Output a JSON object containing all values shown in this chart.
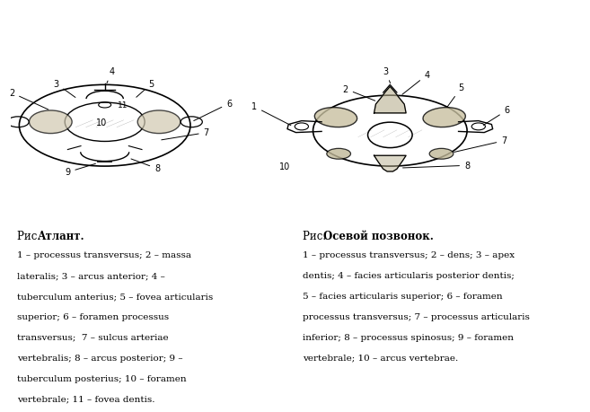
{
  "bg_color": "#ffffff",
  "fig_width": 6.48,
  "fig_height": 4.37,
  "title1_normal": "Рис. ",
  "title1_bold": "Атлант.",
  "title2_normal": "Рис. ",
  "title2_bold": "Осевой позвонок.",
  "text1_lines": [
    "1 – processus transversus; 2 – massa",
    "lateralis; 3 – arcus anterior; 4 –",
    "tuberculum anterius; 5 – fovea articularis",
    "superior; 6 – foramen processus",
    "transversus;  7 – sulcus arteriae",
    "vertebralis; 8 – arcus posterior; 9 –",
    "tuberculum posterius; 10 – foramen",
    "vertebrale; 11 – fovea dentis."
  ],
  "text2_lines": [
    "1 – processus transversus; 2 – dens; 3 – apex",
    "dentis; 4 – facies articularis posterior dentis;",
    "5 – facies articularis superior; 6 – foramen",
    "processus transversus; 7 – processus articularis",
    "inferior; 8 – processus spinosus; 9 – foramen",
    "vertebrale; 10 – arcus vertebrae."
  ],
  "font_size_text": 7.5,
  "font_size_title": 8.5,
  "font_size_label": 7.0
}
